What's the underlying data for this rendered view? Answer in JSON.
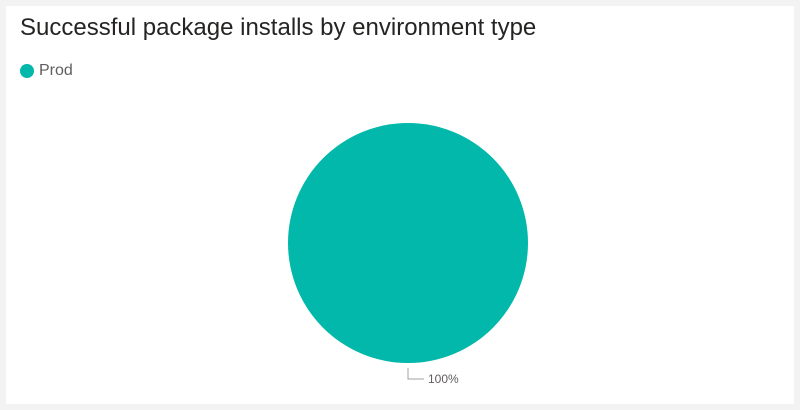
{
  "chart_data": {
    "type": "pie",
    "title": "Successful package installs by environment type",
    "legend_position": "top-left",
    "categories": [
      "Prod"
    ],
    "values": [
      100
    ],
    "data_labels": [
      "100%"
    ],
    "colors": [
      "#01b8aa"
    ]
  }
}
